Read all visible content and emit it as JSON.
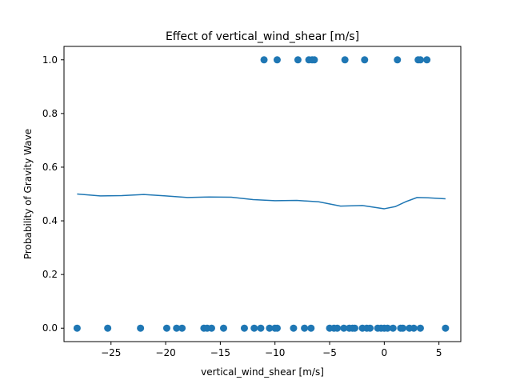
{
  "chart_data": {
    "type": "scatter",
    "title": "Effect of vertical_wind_shear [m/s]",
    "xlabel": "vertical_wind_shear [m/s]",
    "ylabel": "Probability of Gravity Wave",
    "xlim": [
      -29.3,
      7.0
    ],
    "ylim": [
      -0.05,
      1.05
    ],
    "xticks": [
      -25,
      -20,
      -15,
      -10,
      -5,
      0,
      5
    ],
    "yticks": [
      0.0,
      0.2,
      0.4,
      0.6,
      0.8,
      1.0
    ],
    "xtick_labels": [
      "−25",
      "−20",
      "−15",
      "−10",
      "−5",
      "0",
      "5"
    ],
    "ytick_labels": [
      "0.0",
      "0.2",
      "0.4",
      "0.6",
      "0.8",
      "1.0"
    ],
    "grid": false,
    "color": "#1f77b4",
    "series": [
      {
        "type": "scatter",
        "x": [
          -11.0,
          -9.8,
          -7.9,
          -6.9,
          -6.6,
          -6.4,
          -3.6,
          -1.8,
          1.2,
          3.1,
          3.3,
          3.9,
          -28.1,
          -25.3,
          -22.3,
          -19.9,
          -19.0,
          -18.5,
          -16.5,
          -16.2,
          -15.8,
          -14.7,
          -12.8,
          -11.9,
          -11.3,
          -10.5,
          -10.0,
          -9.8,
          -8.3,
          -7.3,
          -6.7,
          -5.0,
          -4.6,
          -4.3,
          -3.7,
          -3.2,
          -2.9,
          -2.7,
          -2.0,
          -1.6,
          -1.3,
          -0.6,
          -0.3,
          0.0,
          0.3,
          0.8,
          1.5,
          1.7,
          2.3,
          2.7,
          3.3,
          5.6
        ],
        "y": [
          1,
          1,
          1,
          1,
          1,
          1,
          1,
          1,
          1,
          1,
          1,
          1,
          0,
          0,
          0,
          0,
          0,
          0,
          0,
          0,
          0,
          0,
          0,
          0,
          0,
          0,
          0,
          0,
          0,
          0,
          0,
          0,
          0,
          0,
          0,
          0,
          0,
          0,
          0,
          0,
          0,
          0,
          0,
          0,
          0,
          0,
          0,
          0,
          0,
          0,
          0,
          0
        ]
      },
      {
        "type": "line",
        "x": [
          -28.1,
          -26.0,
          -24.0,
          -22.0,
          -20.0,
          -18.0,
          -16.0,
          -14.0,
          -12.0,
          -10.0,
          -8.0,
          -6.0,
          -4.0,
          -2.0,
          0.0,
          1.0,
          2.0,
          3.0,
          4.0,
          5.6
        ],
        "y": [
          0.5,
          0.493,
          0.494,
          0.498,
          0.493,
          0.487,
          0.489,
          0.488,
          0.479,
          0.475,
          0.476,
          0.471,
          0.455,
          0.457,
          0.445,
          0.453,
          0.472,
          0.487,
          0.486,
          0.482
        ]
      }
    ]
  }
}
